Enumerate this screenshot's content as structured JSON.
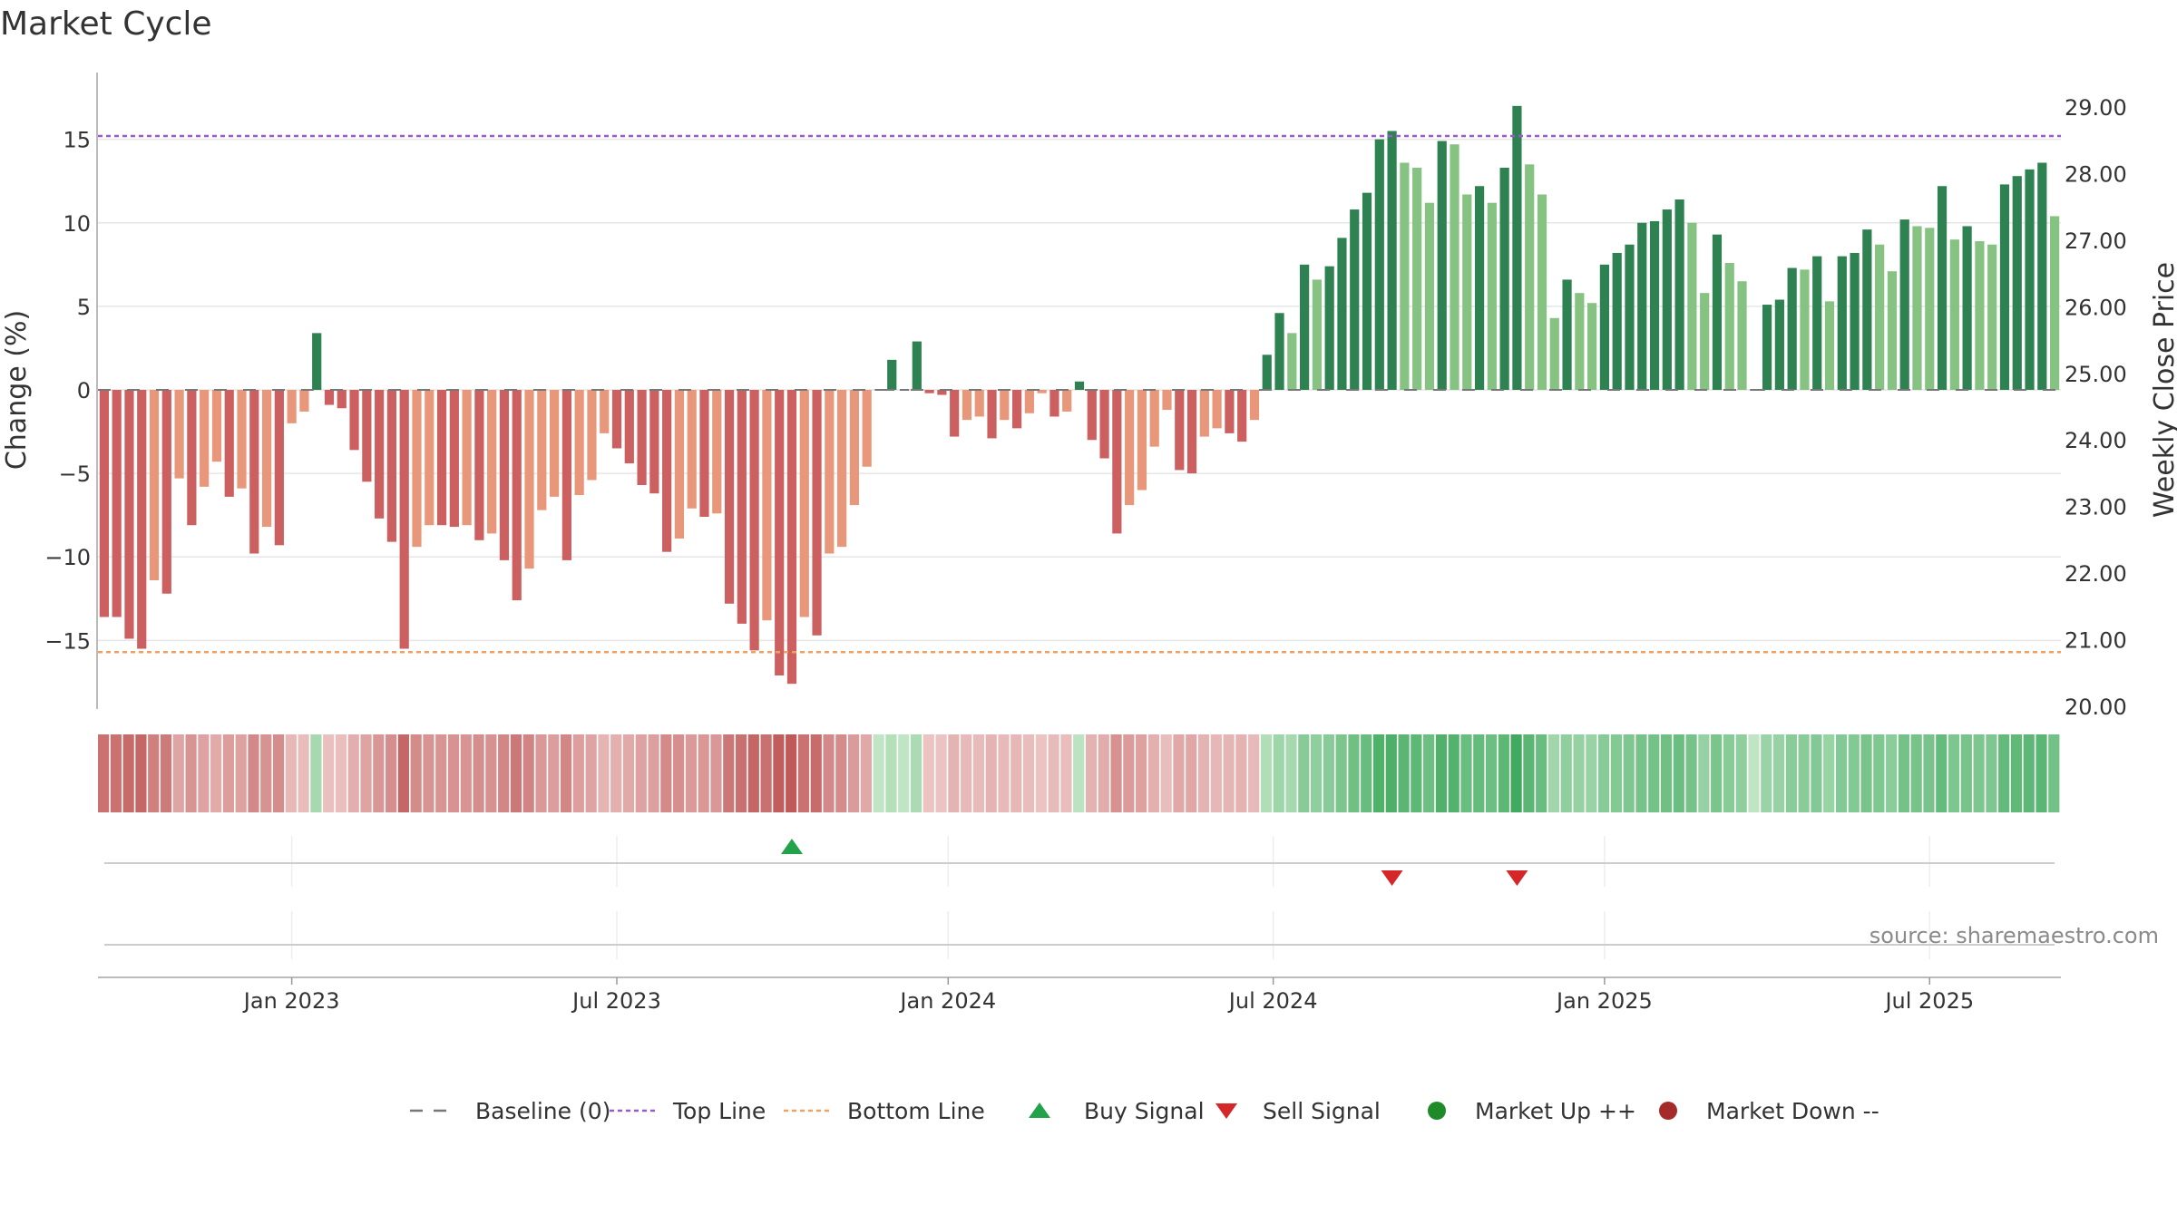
{
  "chart_data": {
    "type": "bar",
    "title": "Market Cycle",
    "ylabel_left": "Change (%)",
    "ylabel_right": "Weekly Close Price",
    "ylim_left": [
      -19,
      19
    ],
    "ylim_right": [
      20.0,
      29.0
    ],
    "left_ticks": [
      {
        "value": 15,
        "label": "15"
      },
      {
        "value": 10,
        "label": "10"
      },
      {
        "value": 5,
        "label": "5"
      },
      {
        "value": 0,
        "label": "0"
      },
      {
        "value": -5,
        "label": "−5"
      },
      {
        "value": -10,
        "label": "−10"
      },
      {
        "value": -15,
        "label": "−15"
      }
    ],
    "right_ticks": [
      "29.00",
      "28.00",
      "27.00",
      "26.00",
      "25.00",
      "24.00",
      "23.00",
      "22.00",
      "21.00",
      "20.00"
    ],
    "x_ticks": [
      {
        "label": "Jan 2023",
        "week": 15
      },
      {
        "label": "Jul 2023",
        "week": 41
      },
      {
        "label": "Jan 2024",
        "week": 67.5
      },
      {
        "label": "Jul 2024",
        "week": 93.5
      },
      {
        "label": "Jan 2025",
        "week": 120
      },
      {
        "label": "Jul 2025",
        "week": 146
      }
    ],
    "top_line": 15.2,
    "bottom_line": -15.7,
    "values": [
      -13.6,
      -13.6,
      -14.9,
      -15.5,
      -11.4,
      -12.2,
      -5.3,
      -8.1,
      -5.8,
      -4.3,
      -6.4,
      -5.9,
      -9.8,
      -8.2,
      -9.3,
      -2.0,
      -1.3,
      3.4,
      -0.9,
      -1.1,
      -3.6,
      -5.5,
      -7.7,
      -9.1,
      -15.5,
      -9.4,
      -8.1,
      -8.1,
      -8.2,
      -8.1,
      -9.0,
      -8.6,
      -10.2,
      -12.6,
      -10.7,
      -7.2,
      -6.4,
      -10.2,
      -6.3,
      -5.4,
      -2.6,
      -3.5,
      -4.4,
      -5.7,
      -6.2,
      -9.7,
      -8.9,
      -7.1,
      -7.6,
      -7.4,
      -12.8,
      -14.0,
      -15.6,
      -13.8,
      -17.1,
      -17.6,
      -13.6,
      -14.7,
      -9.8,
      -9.4,
      -6.9,
      -4.6,
      0.0,
      1.8,
      0.0,
      2.9,
      -0.2,
      -0.3,
      -2.8,
      -1.8,
      -1.6,
      -2.9,
      -1.8,
      -2.3,
      -1.4,
      -0.2,
      -1.6,
      -1.3,
      0.5,
      -3.0,
      -4.1,
      -8.6,
      -6.9,
      -6.0,
      -3.4,
      -1.2,
      -4.8,
      -5.0,
      -2.8,
      -2.3,
      -2.6,
      -3.1,
      -1.8,
      2.1,
      4.6,
      3.4,
      7.5,
      6.6,
      7.4,
      9.1,
      10.8,
      11.8,
      15.0,
      15.5,
      13.6,
      13.3,
      11.2,
      14.9,
      14.7,
      11.7,
      12.2,
      11.2,
      13.3,
      17.0,
      13.5,
      11.7,
      4.3,
      6.6,
      5.8,
      5.2,
      7.5,
      8.2,
      8.7,
      10.0,
      10.1,
      10.8,
      11.4,
      10.0,
      5.8,
      9.3,
      7.6,
      6.5,
      0.0,
      5.1,
      5.4,
      7.3,
      7.2,
      8.0,
      5.3,
      8.0,
      8.2,
      9.6,
      8.7,
      7.1,
      10.2,
      9.8,
      9.7,
      12.2,
      9.0,
      9.8,
      8.9,
      8.7,
      12.3,
      12.8,
      13.2,
      13.6,
      10.4
    ],
    "buy_signals": [
      {
        "week": 55
      }
    ],
    "sell_signals": [
      {
        "week": 103
      },
      {
        "week": 113
      }
    ],
    "legend": [
      {
        "label": "Baseline (0)",
        "type": "dash",
        "color": "#777777"
      },
      {
        "label": "Top Line",
        "type": "dotted",
        "color": "#9b59d0"
      },
      {
        "label": "Bottom Line",
        "type": "dotted",
        "color": "#f0a060"
      },
      {
        "label": "Buy Signal",
        "type": "triangle-up",
        "color": "#22a34a"
      },
      {
        "label": "Sell Signal",
        "type": "triangle-down",
        "color": "#d62728"
      },
      {
        "label": "Market Up ++",
        "type": "dot",
        "color": "#1e8a2a"
      },
      {
        "label": "Market Down --",
        "type": "dot",
        "color": "#a52a2a"
      }
    ],
    "grid": true,
    "colors": {
      "neg_strong": "#cc6060",
      "neg_light": "#e8977a",
      "pos_strong": "#2e8150",
      "pos_light": "#86c282",
      "top_line": "#9b59d0",
      "bottom_line": "#f0a060"
    }
  },
  "source": "source: sharemaestro.com"
}
